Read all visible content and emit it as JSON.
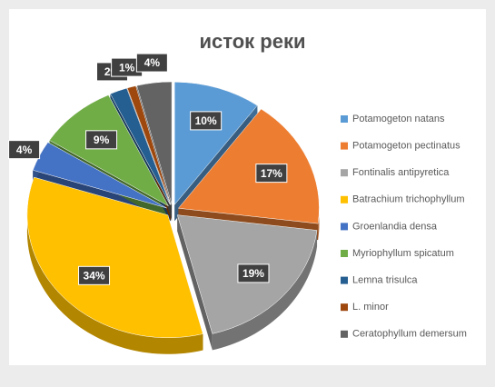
{
  "chart_data": {
    "type": "pie",
    "title": "исток реки",
    "categories": [
      "Potamogeton natans",
      "Potamogeton pectinatus",
      "Fontinalis antipyretica",
      "Batrachium trichophyllum",
      "Groenlandia densa",
      "Myriophyllum spicatum",
      "Lemna trisulca",
      "L. minor",
      "Ceratophyllum demersum"
    ],
    "values": [
      10,
      17,
      19,
      34,
      4,
      9,
      2,
      1,
      4
    ],
    "value_labels": [
      "10%",
      "17%",
      "19%",
      "34%",
      "4%",
      "9%",
      "2%",
      "1%",
      "4%"
    ],
    "colors": [
      "#5b9bd5",
      "#ed7d31",
      "#a5a5a5",
      "#ffc000",
      "#4472c4",
      "#70ad47",
      "#255e91",
      "#9e480e",
      "#636363"
    ],
    "legend": "right"
  }
}
